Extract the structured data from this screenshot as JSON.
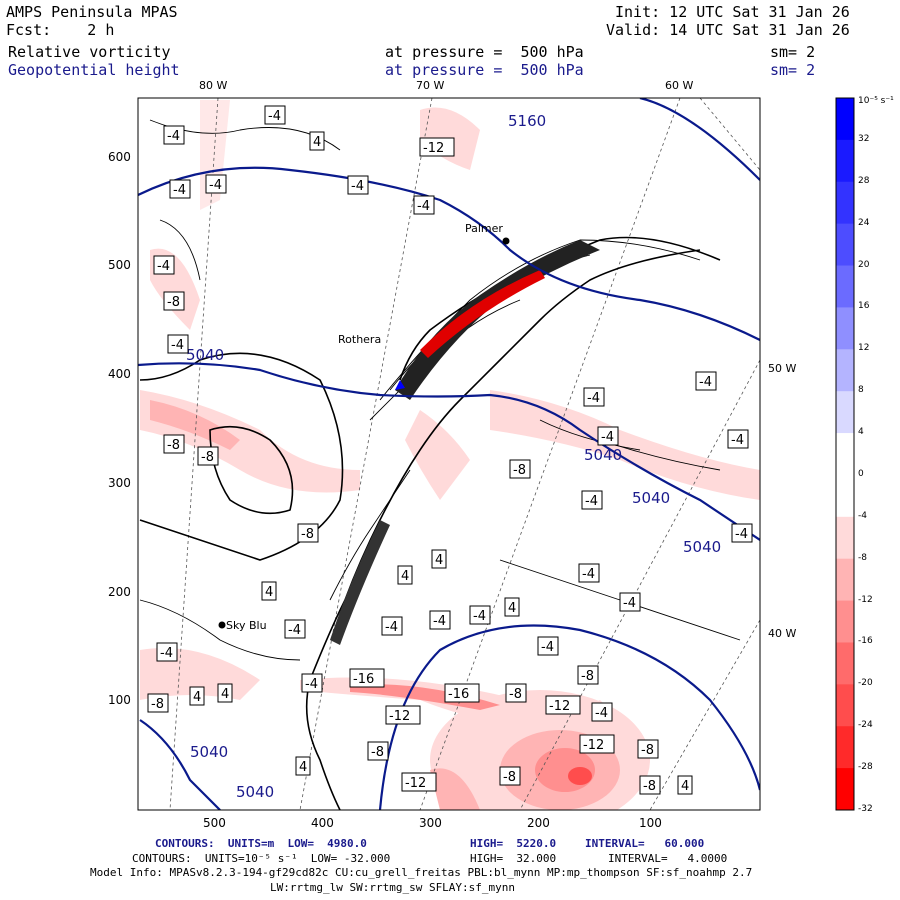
{
  "header": {
    "title": "AMPS Peninsula MPAS",
    "fcst": "Fcst:    2 h",
    "init": "Init: 12 UTC Sat 31 Jan 26",
    "valid": "Valid: 14 UTC Sat 31 Jan 26",
    "field1": {
      "name": "Relative vorticity",
      "level": "at pressure =  500 hPa",
      "sm": "sm= 2"
    },
    "field2": {
      "name": "Geopotential height",
      "level": "at pressure =  500 hPa",
      "sm": "sm= 2"
    }
  },
  "map": {
    "longitude_labels_top": [
      "80 W",
      "70 W",
      "60 W"
    ],
    "longitude_labels_right": [
      "50 W",
      "40 W"
    ],
    "y_ticks": [
      "600",
      "500",
      "400",
      "300",
      "200",
      "100"
    ],
    "x_ticks": [
      "500",
      "400",
      "300",
      "200",
      "100"
    ],
    "places": [
      "Palmer",
      "Rothera",
      "Sky Blu"
    ],
    "height_contour_labels": [
      "5160",
      "5040",
      "5040",
      "5040",
      "5040",
      "5040"
    ],
    "vorticity_labels": [
      "-4",
      "-8",
      "-12",
      "-16",
      "4"
    ]
  },
  "colorbar": {
    "unit": "10⁻⁵ s⁻¹",
    "labels": [
      "32",
      "28",
      "24",
      "20",
      "16",
      "12",
      "8",
      "4",
      "0",
      "-4",
      "-8",
      "-12",
      "-16",
      "-20",
      "-24",
      "-28",
      "-32"
    ],
    "colors": [
      "#0000ff",
      "#1a1aff",
      "#3333ff",
      "#4d4dff",
      "#6b6bff",
      "#8f8fff",
      "#b4b4ff",
      "#d9d9ff",
      "#ffffff",
      "#ffffff",
      "#ffdada",
      "#ffb4b4",
      "#ff8f8f",
      "#ff6b6b",
      "#ff4d4d",
      "#ff2a2a",
      "#ff0000"
    ]
  },
  "footer": {
    "line1": {
      "prefix": "CONTOURS:  UNITS=m  LOW=  4980.0",
      "high": "HIGH=  5220.0",
      "interval": "INTERVAL=   60.000"
    },
    "line2": {
      "prefix": "CONTOURS:  UNITS=10⁻⁵ s⁻¹  LOW= -32.000",
      "high": "HIGH=  32.000",
      "interval": "INTERVAL=   4.0000"
    },
    "line3": "Model Info: MPASv8.2.3-194-gf29cd82c CU:cu_grell_freitas PBL:bl_mynn MP:mp_thompson SF:sf_noahmp 2.7",
    "line4": "LW:rrtmg_lw SW:rrtmg_sw SFLAY:sf_mynn"
  }
}
